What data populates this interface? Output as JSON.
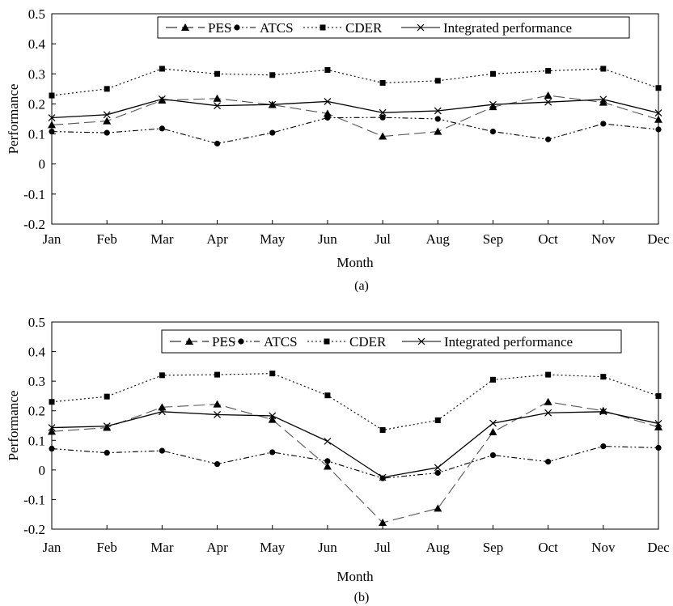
{
  "chart_data": [
    {
      "type": "line",
      "panel_label": "(a)",
      "xlabel": "Month",
      "ylabel": "Performance",
      "ylim": [
        -0.2,
        0.5
      ],
      "yticks": [
        "0.5",
        "0.4",
        "0.3",
        "0.2",
        "0.1",
        "0",
        "-0.1",
        "-0.2"
      ],
      "categories": [
        "Jan",
        "Feb",
        "Mar",
        "Apr",
        "May",
        "Jun",
        "Jul",
        "Aug",
        "Sep",
        "Oct",
        "Nov",
        "Dec"
      ],
      "legend_position": "top-right",
      "series": [
        {
          "name": "PES",
          "marker": "triangle",
          "dash": "long-dash",
          "values": [
            0.13,
            0.143,
            0.212,
            0.218,
            0.197,
            0.168,
            0.092,
            0.108,
            0.19,
            0.228,
            0.205,
            0.148
          ]
        },
        {
          "name": "ATCS",
          "marker": "circle",
          "dash": "dash-dot-dot",
          "values": [
            0.108,
            0.104,
            0.118,
            0.068,
            0.104,
            0.154,
            0.155,
            0.15,
            0.108,
            0.082,
            0.134,
            0.115
          ]
        },
        {
          "name": "CDER",
          "marker": "square",
          "dash": "dotted",
          "values": [
            0.228,
            0.25,
            0.317,
            0.3,
            0.296,
            0.313,
            0.27,
            0.277,
            0.3,
            0.31,
            0.317,
            0.253
          ]
        },
        {
          "name": "Integrated performance",
          "marker": "cross",
          "dash": "solid",
          "values": [
            0.154,
            0.164,
            0.216,
            0.194,
            0.198,
            0.208,
            0.171,
            0.177,
            0.198,
            0.206,
            0.215,
            0.17
          ]
        }
      ]
    },
    {
      "type": "line",
      "panel_label": "(b)",
      "xlabel": "Month",
      "ylabel": "Performance",
      "ylim": [
        -0.2,
        0.5
      ],
      "yticks": [
        "0.5",
        "0.4",
        "0.3",
        "0.2",
        "0.1",
        "0",
        "-0.1",
        "-0.2"
      ],
      "categories": [
        "Jan",
        "Feb",
        "Mar",
        "Apr",
        "May",
        "Jun",
        "Jul",
        "Aug",
        "Sep",
        "Oct",
        "Nov",
        "Dec"
      ],
      "legend_position": "top-right",
      "series": [
        {
          "name": "PES",
          "marker": "triangle",
          "dash": "long-dash",
          "values": [
            0.13,
            0.143,
            0.212,
            0.222,
            0.17,
            0.012,
            -0.178,
            -0.13,
            0.128,
            0.23,
            0.2,
            0.145
          ]
        },
        {
          "name": "ATCS",
          "marker": "circle",
          "dash": "dash-dot-dot",
          "values": [
            0.072,
            0.058,
            0.065,
            0.02,
            0.06,
            0.03,
            -0.028,
            -0.01,
            0.05,
            0.028,
            0.08,
            0.075
          ]
        },
        {
          "name": "CDER",
          "marker": "square",
          "dash": "dotted",
          "values": [
            0.23,
            0.248,
            0.32,
            0.322,
            0.326,
            0.252,
            0.135,
            0.168,
            0.305,
            0.322,
            0.315,
            0.25
          ]
        },
        {
          "name": "Integrated performance",
          "marker": "cross",
          "dash": "solid",
          "values": [
            0.143,
            0.148,
            0.197,
            0.187,
            0.183,
            0.097,
            -0.025,
            0.008,
            0.158,
            0.193,
            0.197,
            0.157
          ]
        }
      ]
    }
  ]
}
